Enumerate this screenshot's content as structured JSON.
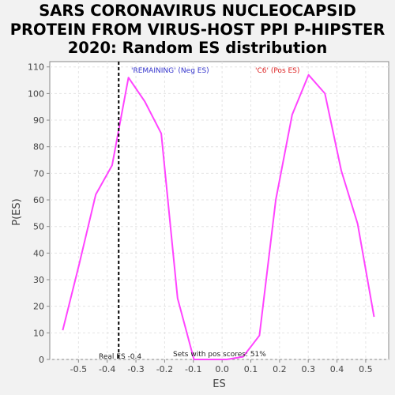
{
  "chart_data": {
    "type": "line",
    "title_lines": [
      "SARS CORONAVIRUS NUCLEOCAPSID",
      "PROTEIN FROM VIRUS-HOST PPI P-HIPSTER",
      "2020: Random ES distribution"
    ],
    "xlabel": "ES",
    "ylabel": "P(ES)",
    "xlim": [
      -0.6,
      0.58
    ],
    "ylim": [
      0,
      112
    ],
    "x_ticks": [
      -0.5,
      -0.4,
      -0.3,
      -0.2,
      -0.1,
      0.0,
      0.1,
      0.2,
      0.3,
      0.4,
      0.5
    ],
    "x_tick_labels": [
      "-0.5",
      "-0.4",
      "-0.3",
      "-0.2",
      "-0.1",
      "0.0",
      "0.1",
      "0.2",
      "0.3",
      "0.4",
      "0.5"
    ],
    "y_ticks": [
      0,
      10,
      20,
      30,
      40,
      50,
      60,
      70,
      80,
      90,
      100,
      110
    ],
    "y_tick_labels": [
      "0",
      "10",
      "20",
      "30",
      "40",
      "50",
      "60",
      "70",
      "80",
      "90",
      "100",
      "110"
    ],
    "grid": true,
    "series": [
      {
        "name": "Random ES distribution",
        "color": "#ff44ff",
        "x": [
          -0.555,
          -0.497,
          -0.44,
          -0.383,
          -0.326,
          -0.269,
          -0.212,
          -0.155,
          -0.098,
          -0.041,
          0.016,
          0.073,
          0.13,
          0.187,
          0.244,
          0.301,
          0.358,
          0.415,
          0.472,
          0.529
        ],
        "y": [
          11,
          36,
          62,
          73,
          106,
          97,
          85,
          23,
          0,
          0,
          0,
          1,
          9,
          60,
          92,
          107,
          100,
          71,
          51,
          16
        ]
      }
    ],
    "real_es": {
      "value": -0.36,
      "label": "Real ES -0.4",
      "color": "#000000"
    },
    "annotations": {
      "neg_label": "'REMAINING' (Neg ES)",
      "neg_color": "#3333cc",
      "pos_label": "'C6' (Pos ES)",
      "pos_color": "#dd2222",
      "pos_scores_text": "Sets with pos scores: 51%"
    },
    "colors": {
      "plot_background": "#ffffff",
      "page_background": "#f2f2f2",
      "grid": "#e4e4e4",
      "axis": "#888888"
    }
  }
}
